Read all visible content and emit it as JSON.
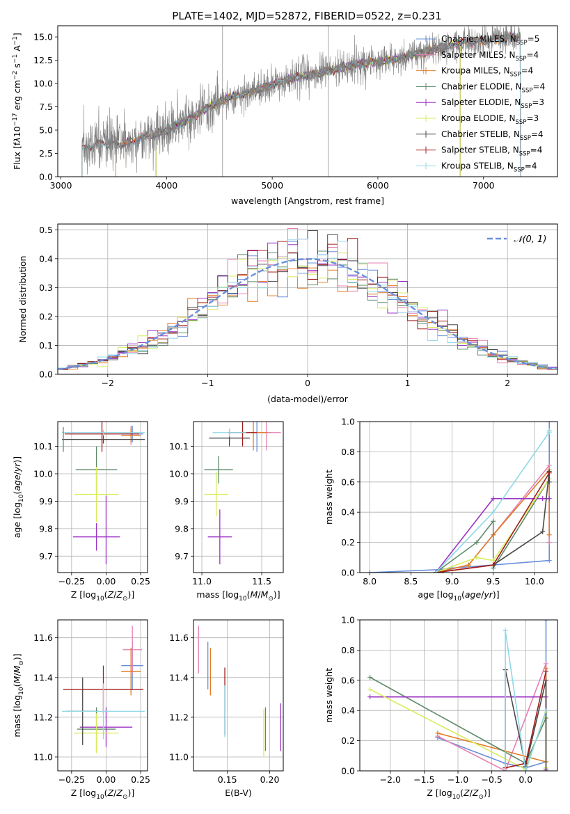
{
  "figure_title": "PLATE=1402, MJD=52872, FIBERID=0522, z=0.231",
  "legend_models": [
    {
      "label": "Chabrier MILES, N",
      "sub": "SSP",
      "tail": "=5",
      "color": "#6a8fd9"
    },
    {
      "label": "Salpeter MILES, N",
      "sub": "SSP",
      "tail": "=4",
      "color": "#e77fb2"
    },
    {
      "label": "Kroupa MILES, N",
      "sub": "SSP",
      "tail": "=4",
      "color": "#e07b24"
    },
    {
      "label": "Chabrier ELODIE, N",
      "sub": "SSP",
      "tail": "=4",
      "color": "#5d8a68"
    },
    {
      "label": "Salpeter ELODIE, N",
      "sub": "SSP",
      "tail": "=3",
      "color": "#9b33c4"
    },
    {
      "label": "Kroupa ELODIE, N",
      "sub": "SSP",
      "tail": "=3",
      "color": "#d9ec5c"
    },
    {
      "label": "Chabrier STELIB, N",
      "sub": "SSP",
      "tail": "=4",
      "color": "#4a4a4a"
    },
    {
      "label": "Salpeter STELIB, N",
      "sub": "SSP",
      "tail": "=4",
      "color": "#a31d1d"
    },
    {
      "label": "Kroupa STELIB, N",
      "sub": "SSP",
      "tail": "=4",
      "color": "#8fd8e6"
    }
  ],
  "chart_data": [
    {
      "id": "spectrum",
      "type": "line",
      "xlabel": "wavelength [Angstrom, rest frame]",
      "ylabel_html": "Flux [f<tspan font-style='italic'>λ</tspan>10<tspan dy='-5' font-size='9'>−17</tspan><tspan dy='5'> erg cm</tspan><tspan dy='-5' font-size='9'>−2</tspan><tspan dy='5'> s</tspan><tspan dy='-5' font-size='9'>−1</tspan><tspan dy='5'> A</tspan><tspan dy='-5' font-size='9'>−1</tspan><tspan dy='5'>]</tspan>",
      "xlim": [
        2970,
        7700
      ],
      "ylim": [
        0,
        16.2
      ],
      "xticks": [
        3000,
        4000,
        5000,
        6000,
        7000
      ],
      "yticks": [
        0.0,
        2.5,
        5.0,
        7.5,
        10.0,
        12.5,
        15.0
      ],
      "grid": false,
      "legend_position": "right",
      "series_note": "observed spectrum (grey) with nine model fits (colored)",
      "continuum": [
        [
          3200,
          3.1
        ],
        [
          3400,
          3.6
        ],
        [
          3600,
          3.5
        ],
        [
          3800,
          4.3
        ],
        [
          4000,
          4.9
        ],
        [
          4200,
          6.1
        ],
        [
          4400,
          7.5
        ],
        [
          4600,
          8.5
        ],
        [
          4800,
          9.1
        ],
        [
          5000,
          9.9
        ],
        [
          5200,
          10.6
        ],
        [
          5400,
          11.0
        ],
        [
          5600,
          11.5
        ],
        [
          5800,
          12.1
        ],
        [
          6000,
          12.3
        ],
        [
          6200,
          12.7
        ],
        [
          6400,
          13.3
        ],
        [
          6600,
          13.8
        ],
        [
          6800,
          14.4
        ],
        [
          7000,
          14.6
        ],
        [
          7200,
          14.9
        ],
        [
          7350,
          15.1
        ]
      ],
      "model_starts": [
        3520,
        3520,
        3520,
        3900,
        3900,
        3900,
        3200,
        3200,
        3200
      ],
      "model_ends": [
        7350,
        7350,
        7350,
        6780,
        6780,
        6780,
        7350,
        7350,
        7350
      ]
    },
    {
      "id": "residual_histogram",
      "type": "line",
      "xlabel": "(data-model)/error",
      "ylabel": "Normed distribution",
      "xlim": [
        -2.5,
        2.5
      ],
      "ylim": [
        0,
        0.52
      ],
      "xticks": [
        -2,
        -1,
        0,
        1,
        2
      ],
      "yticks": [
        0.0,
        0.1,
        0.2,
        0.3,
        0.4,
        0.5
      ],
      "grid": true,
      "legend_position": "top-right",
      "reference_curve": {
        "label": "𝒩(0, 1)",
        "color": "#6a8fd9",
        "style": "dashed"
      },
      "bin_width": 0.1,
      "bin_start": -2.5
    },
    {
      "id": "age_vs_Z",
      "type": "scatter",
      "xlabel": "Z [log10(Z/Z⊙)]",
      "ylabel": "age  [log10(age/yr)]",
      "xlim": [
        -0.35,
        0.3
      ],
      "ylim": [
        9.64,
        10.19
      ],
      "xticks": [
        -0.25,
        0.0,
        0.25
      ],
      "yticks": [
        9.7,
        9.8,
        9.9,
        10.0,
        10.1
      ],
      "grid": true,
      "points": [
        {
          "x": 0.19,
          "y": 10.145,
          "xerr": 0.08,
          "yerr": 0.03,
          "color": "#6a8fd9"
        },
        {
          "x": 0.18,
          "y": 10.14,
          "xerr": 0.07,
          "yerr": 0.035,
          "color": "#e77fb2"
        },
        {
          "x": 0.18,
          "y": 10.14,
          "xerr": 0.07,
          "yerr": 0.025,
          "color": "#e07b24"
        },
        {
          "x": -0.07,
          "y": 10.015,
          "xerr": 0.15,
          "yerr": 0.085,
          "color": "#5d8a68"
        },
        {
          "x": -0.07,
          "y": 9.77,
          "xerr": 0.17,
          "yerr": 0.05,
          "color": "#9b33c4"
        },
        {
          "x": -0.07,
          "y": 9.925,
          "xerr": 0.16,
          "yerr": 0.1,
          "color": "#d9ec5c"
        },
        {
          "x": -0.02,
          "y": 10.125,
          "xerr": 0.3,
          "yerr": 0.015,
          "color": "#4a4a4a"
        },
        {
          "x": -0.03,
          "y": 10.145,
          "xerr": 0.27,
          "yerr": 0.065,
          "color": "#a31d1d"
        },
        {
          "x": -0.02,
          "y": 10.15,
          "xerr": 0.3,
          "yerr": 0.01,
          "color": "#8fd8e6"
        }
      ],
      "extra_vertical": [
        {
          "x": 0.0,
          "y1": 9.67,
          "y2": 9.92,
          "color": "#9b33c4"
        },
        {
          "x": -0.31,
          "y1": 10.08,
          "y2": 10.17,
          "color": "#5d8a68"
        }
      ]
    },
    {
      "id": "age_vs_mass",
      "type": "scatter",
      "xlabel": "mass [log10(M/M⊙)]",
      "ylabel": "",
      "xlim": [
        10.93,
        11.68
      ],
      "ylim": [
        9.64,
        10.19
      ],
      "xticks": [
        11.0,
        11.5
      ],
      "yticks": [
        9.7,
        9.8,
        9.9,
        10.0,
        10.1
      ],
      "grid": true,
      "points": [
        {
          "x": 11.46,
          "y": 10.15,
          "xerr": 0.12,
          "yerr": 0.07,
          "color": "#6a8fd9"
        },
        {
          "x": 11.54,
          "y": 10.15,
          "xerr": 0.12,
          "yerr": 0.065,
          "color": "#e77fb2"
        },
        {
          "x": 11.43,
          "y": 10.15,
          "xerr": 0.12,
          "yerr": 0.065,
          "color": "#e07b24"
        },
        {
          "x": 11.14,
          "y": 10.015,
          "xerr": 0.12,
          "yerr": 0.05,
          "color": "#5d8a68"
        },
        {
          "x": 11.15,
          "y": 9.77,
          "xerr": 0.1,
          "yerr": 0.1,
          "color": "#9b33c4"
        },
        {
          "x": 11.12,
          "y": 9.925,
          "xerr": 0.1,
          "yerr": 0.08,
          "color": "#d9ec5c"
        },
        {
          "x": 11.23,
          "y": 10.13,
          "xerr": 0.17,
          "yerr": 0.03,
          "color": "#4a4a4a"
        },
        {
          "x": 11.34,
          "y": 10.15,
          "xerr": 0.12,
          "yerr": 0.05,
          "color": "#a31d1d"
        },
        {
          "x": 11.23,
          "y": 10.15,
          "xerr": 0.14,
          "yerr": 0.015,
          "color": "#8fd8e6"
        }
      ]
    },
    {
      "id": "cumulative_age",
      "type": "line",
      "xlabel": "age  [log10(age/yr)]",
      "ylabel": "mass weight",
      "xlim": [
        7.88,
        10.28
      ],
      "ylim": [
        0,
        1.0
      ],
      "xticks": [
        8.0,
        8.5,
        9.0,
        9.5,
        10.0
      ],
      "yticks": [
        0.0,
        0.2,
        0.4,
        0.6,
        0.8,
        1.0
      ],
      "grid": true,
      "series": [
        {
          "color": "#6a8fd9",
          "x": [
            8.0,
            8.85,
            9.0,
            9.5,
            10.18,
            10.18
          ],
          "y": [
            0.0,
            0.02,
            0.03,
            0.05,
            0.08,
            1.0
          ]
        },
        {
          "color": "#e77fb2",
          "x": [
            8.8,
            9.2,
            9.5,
            10.18,
            10.18
          ],
          "y": [
            0.0,
            0.05,
            0.25,
            0.71,
            0.2
          ]
        },
        {
          "color": "#e07b24",
          "x": [
            8.8,
            9.2,
            9.5,
            10.18,
            10.18
          ],
          "y": [
            0.0,
            0.05,
            0.25,
            0.68,
            0.25
          ]
        },
        {
          "color": "#5d8a68",
          "x": [
            8.8,
            9.3,
            9.5,
            9.5,
            10.18
          ],
          "y": [
            0.0,
            0.2,
            0.34,
            0.03,
            0.62
          ]
        },
        {
          "color": "#9b33c4",
          "x": [
            8.8,
            9.5,
            10.1,
            10.18
          ],
          "y": [
            0.0,
            0.49,
            0.49,
            0.49
          ]
        },
        {
          "color": "#d9ec5c",
          "x": [
            8.8,
            9.3,
            9.5,
            10.18
          ],
          "y": [
            0.0,
            0.1,
            0.08,
            0.62
          ]
        },
        {
          "color": "#4a4a4a",
          "x": [
            8.8,
            9.5,
            10.1,
            10.18,
            10.18
          ],
          "y": [
            0.0,
            0.05,
            0.27,
            0.67,
            0.6
          ]
        },
        {
          "color": "#a31d1d",
          "x": [
            8.8,
            9.5,
            10.18
          ],
          "y": [
            0.0,
            0.05,
            0.66
          ]
        },
        {
          "color": "#8fd8e6",
          "x": [
            8.8,
            9.5,
            10.18,
            10.18
          ],
          "y": [
            0.0,
            0.4,
            0.93,
            0.94
          ]
        }
      ]
    },
    {
      "id": "mass_vs_Z",
      "type": "scatter",
      "xlabel": "Z [log10(Z/Z⊙)]",
      "ylabel": "mass [log10(M/M⊙)]",
      "xlim": [
        -0.35,
        0.3
      ],
      "ylim": [
        10.93,
        11.69
      ],
      "xticks": [
        -0.25,
        0.0,
        0.25
      ],
      "yticks": [
        11.0,
        11.2,
        11.4,
        11.6
      ],
      "grid": true,
      "points": [
        {
          "x": 0.19,
          "y": 11.46,
          "xerr": 0.08,
          "yerr": 0.12,
          "color": "#6a8fd9"
        },
        {
          "x": 0.19,
          "y": 11.54,
          "xerr": 0.07,
          "yerr": 0.12,
          "color": "#e77fb2"
        },
        {
          "x": 0.18,
          "y": 11.43,
          "xerr": 0.07,
          "yerr": 0.12,
          "color": "#e07b24"
        },
        {
          "x": -0.07,
          "y": 11.14,
          "xerr": 0.14,
          "yerr": 0.11,
          "color": "#5d8a68"
        },
        {
          "x": 0.0,
          "y": 11.15,
          "xerr": 0.19,
          "yerr": 0.1,
          "color": "#9b33c4"
        },
        {
          "x": -0.07,
          "y": 11.12,
          "xerr": 0.16,
          "yerr": 0.1,
          "color": "#d9ec5c"
        },
        {
          "x": -0.17,
          "y": 11.23,
          "xerr": 0.12,
          "yerr": 0.17,
          "color": "#4a4a4a"
        },
        {
          "x": -0.02,
          "y": 11.34,
          "xerr": 0.29,
          "yerr": 0.12,
          "color": "#a31d1d"
        },
        {
          "x": -0.02,
          "y": 11.23,
          "xerr": 0.3,
          "yerr": 0.14,
          "color": "#8fd8e6"
        }
      ]
    },
    {
      "id": "mass_vs_ebv",
      "type": "scatter",
      "xlabel": "E(B-V)",
      "ylabel": "",
      "xlim": [
        0.11,
        0.216
      ],
      "ylim": [
        10.93,
        11.69
      ],
      "xticks": [
        0.15,
        0.2
      ],
      "yticks": [
        11.0,
        11.2,
        11.4,
        11.6
      ],
      "grid": true,
      "points": [
        {
          "x": 0.127,
          "y": 11.46,
          "xerr": 0,
          "yerr": 0.12,
          "color": "#6a8fd9"
        },
        {
          "x": 0.116,
          "y": 11.54,
          "xerr": 0,
          "yerr": 0.12,
          "color": "#e77fb2"
        },
        {
          "x": 0.13,
          "y": 11.43,
          "xerr": 0,
          "yerr": 0.12,
          "color": "#e07b24"
        },
        {
          "x": 0.195,
          "y": 11.14,
          "xerr": 0,
          "yerr": 0.11,
          "color": "#5d8a68"
        },
        {
          "x": 0.213,
          "y": 11.15,
          "xerr": 0,
          "yerr": 0.12,
          "color": "#9b33c4"
        },
        {
          "x": 0.193,
          "y": 11.12,
          "xerr": 0,
          "yerr": 0.12,
          "color": "#d9ec5c"
        },
        {
          "x": 0.147,
          "y": 11.23,
          "xerr": 0,
          "yerr": 0.12,
          "color": "#4a4a4a"
        },
        {
          "x": 0.147,
          "y": 11.4,
          "xerr": 0,
          "yerr": 0.05,
          "color": "#a31d1d"
        },
        {
          "x": 0.147,
          "y": 11.23,
          "xerr": 0,
          "yerr": 0.13,
          "color": "#8fd8e6"
        }
      ]
    },
    {
      "id": "cumulative_Z",
      "type": "line",
      "xlabel": "Z [log10(Z/Z⊙)]",
      "ylabel": "mass weight",
      "xlim": [
        -2.45,
        0.47
      ],
      "ylim": [
        0,
        1.0
      ],
      "xticks": [
        -2.0,
        -1.5,
        -1.0,
        -0.5,
        0.0
      ],
      "yticks": [
        0.0,
        0.2,
        0.4,
        0.6,
        0.8,
        1.0
      ],
      "grid": true,
      "series": [
        {
          "color": "#6a8fd9",
          "x": [
            -1.3,
            -0.3,
            0.0,
            0.3,
            0.3
          ],
          "y": [
            0.22,
            0.05,
            0.02,
            0.06,
            1.0
          ]
        },
        {
          "color": "#e77fb2",
          "x": [
            -1.3,
            -0.3,
            0.3,
            0.3
          ],
          "y": [
            0.23,
            0.0,
            0.71,
            0.02
          ]
        },
        {
          "color": "#e07b24",
          "x": [
            -1.3,
            0.3,
            0.3
          ],
          "y": [
            0.25,
            0.06,
            0.68
          ]
        },
        {
          "color": "#5d8a68",
          "x": [
            -2.3,
            0.0,
            0.3,
            0.3
          ],
          "y": [
            0.62,
            0.05,
            0.35,
            0.02
          ]
        },
        {
          "color": "#9b33c4",
          "x": [
            -2.3,
            0.3,
            0.3
          ],
          "y": [
            0.49,
            0.49,
            0.01
          ]
        },
        {
          "color": "#d9ec5c",
          "x": [
            -2.3,
            0.0,
            0.3,
            0.3
          ],
          "y": [
            0.54,
            0.01,
            0.39,
            0.02
          ]
        },
        {
          "color": "#4a4a4a",
          "x": [
            -0.3,
            -0.3,
            0.0,
            0.3,
            0.3
          ],
          "y": [
            0.02,
            0.67,
            0.03,
            0.6,
            0.0
          ]
        },
        {
          "color": "#a31d1d",
          "x": [
            -0.3,
            0.0,
            0.3
          ],
          "y": [
            0.02,
            0.05,
            0.66
          ]
        },
        {
          "color": "#8fd8e6",
          "x": [
            -0.3,
            -0.3,
            0.0,
            0.3
          ],
          "y": [
            0.0,
            0.93,
            0.0,
            0.4
          ]
        }
      ]
    }
  ]
}
